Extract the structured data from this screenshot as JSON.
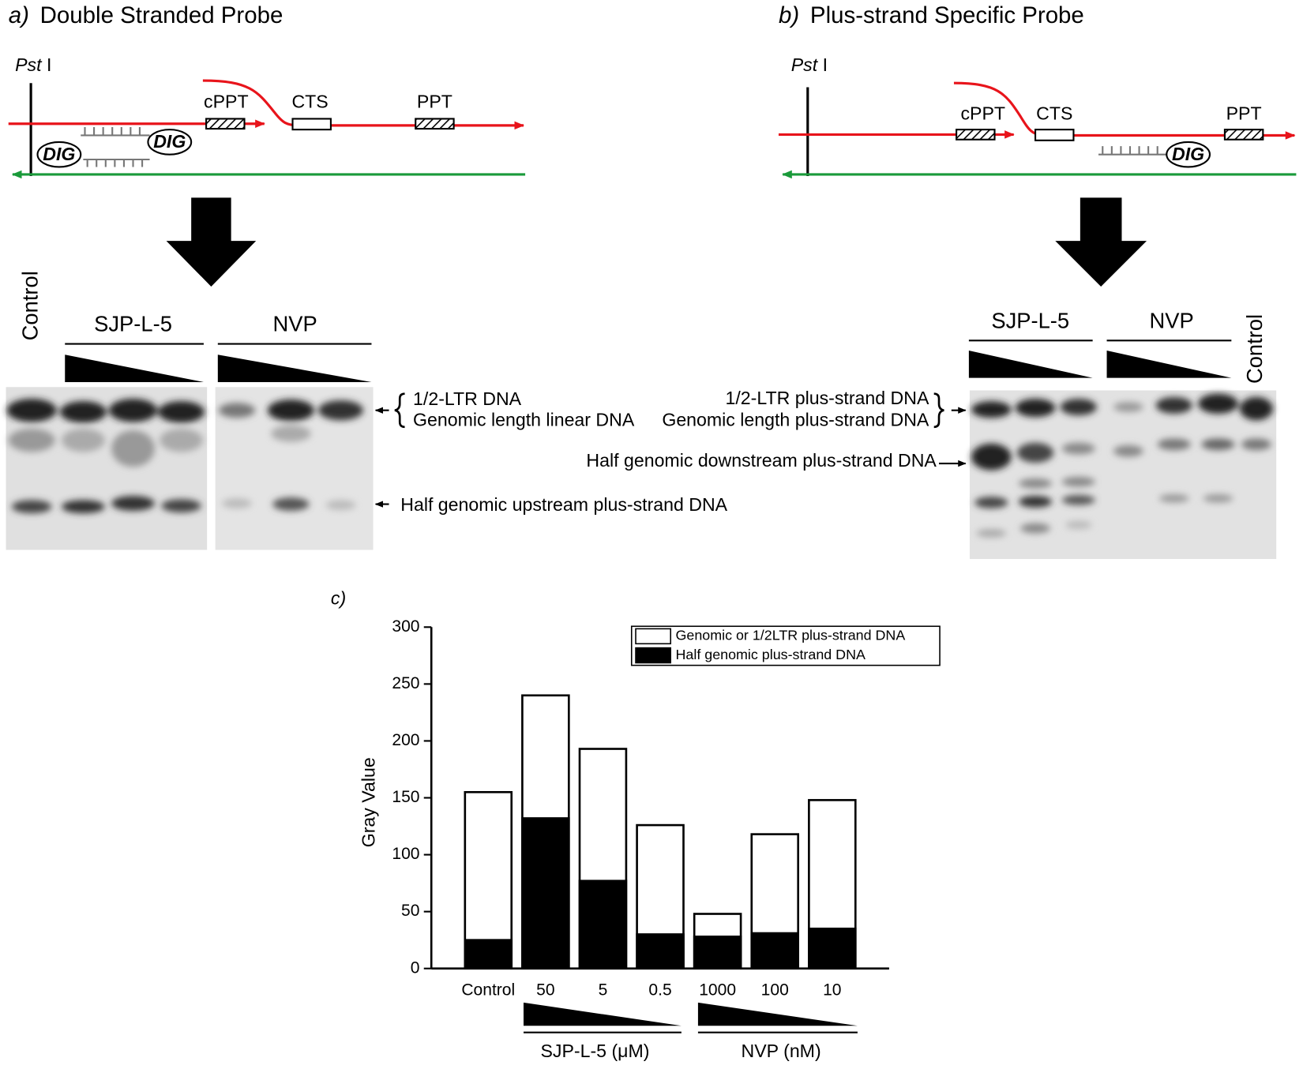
{
  "panel_a": {
    "label": "a)",
    "title": "Double Stranded Probe",
    "site": {
      "italic": "Pst",
      "roman": "I"
    },
    "elements": {
      "cppt": "cPPT",
      "cts": "CTS",
      "ppt": "PPT"
    },
    "probe_tags": [
      "DIG",
      "DIG"
    ],
    "lanes": {
      "control": "Control",
      "drug1": "SJP-L-5",
      "drug2": "NVP"
    },
    "bands": {
      "top_line1": "1/2-LTR DNA",
      "top_line2": "Genomic length linear DNA",
      "lower": "Half genomic upstream plus-strand DNA"
    }
  },
  "panel_b": {
    "label": "b)",
    "title": "Plus-strand Specific Probe",
    "site": {
      "italic": "Pst",
      "roman": "I"
    },
    "elements": {
      "cppt": "cPPT",
      "cts": "CTS",
      "ppt": "PPT"
    },
    "probe_tags": [
      "DIG"
    ],
    "lanes": {
      "drug1": "SJP-L-5",
      "drug2": "NVP",
      "control": "Control"
    },
    "bands": {
      "top_line1": "1/2-LTR plus-strand DNA",
      "top_line2": "Genomic length plus-strand DNA",
      "lower": "Half genomic downstream plus-strand DNA"
    }
  },
  "chart_data": {
    "type": "bar",
    "label": "c)",
    "y_label": "Gray Value",
    "categories": [
      "Control",
      "50",
      "5",
      "0.5",
      "1000",
      "100",
      "10"
    ],
    "series": [
      {
        "name": "Genomic or 1/2LTR plus-strand DNA",
        "color": "#ffffff",
        "values": [
          155,
          240,
          193,
          126,
          48,
          118,
          148
        ]
      },
      {
        "name": "Half genomic plus-strand DNA",
        "color": "#000000",
        "values": [
          25,
          132,
          77,
          30,
          28,
          31,
          35
        ]
      }
    ],
    "groups": [
      "SJP-L-5 (μM)",
      "NVP (nM)"
    ],
    "ylim": [
      0,
      300
    ],
    "yticks": [
      0,
      50,
      100,
      150,
      200,
      250,
      300
    ]
  }
}
